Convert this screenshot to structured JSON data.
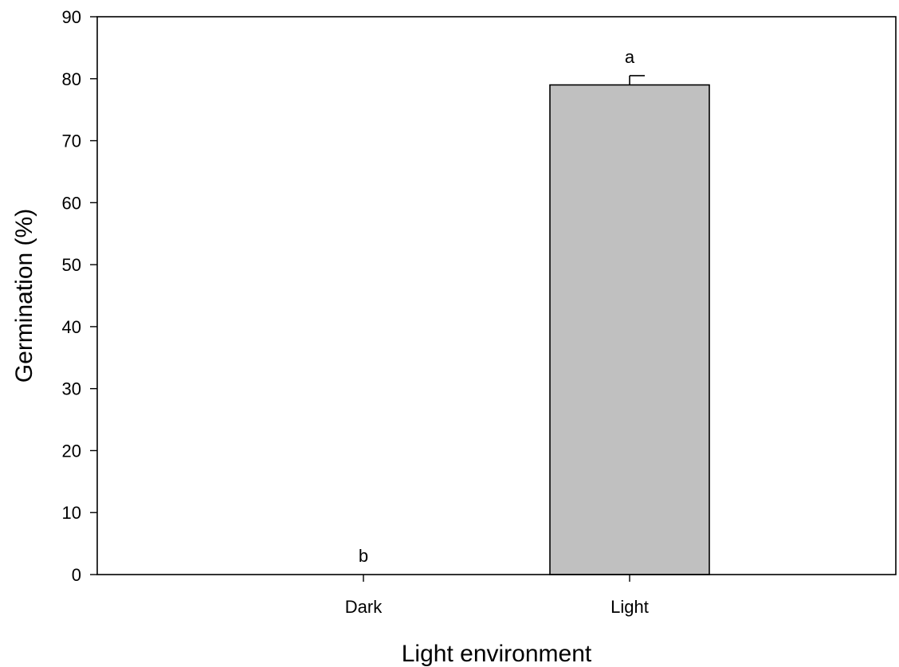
{
  "chart_data": {
    "type": "bar",
    "categories": [
      "Dark",
      "Light"
    ],
    "values": [
      0,
      79
    ],
    "errors": [
      0,
      1.5
    ],
    "significance_letters": [
      "b",
      "a"
    ],
    "bar_color": "#c0c0c0",
    "xlabel": "Light environment",
    "ylabel": "Germination (%)",
    "ylim": [
      0,
      90
    ],
    "yticks": [
      0,
      10,
      20,
      30,
      40,
      50,
      60,
      70,
      80,
      90
    ],
    "grid": false
  }
}
